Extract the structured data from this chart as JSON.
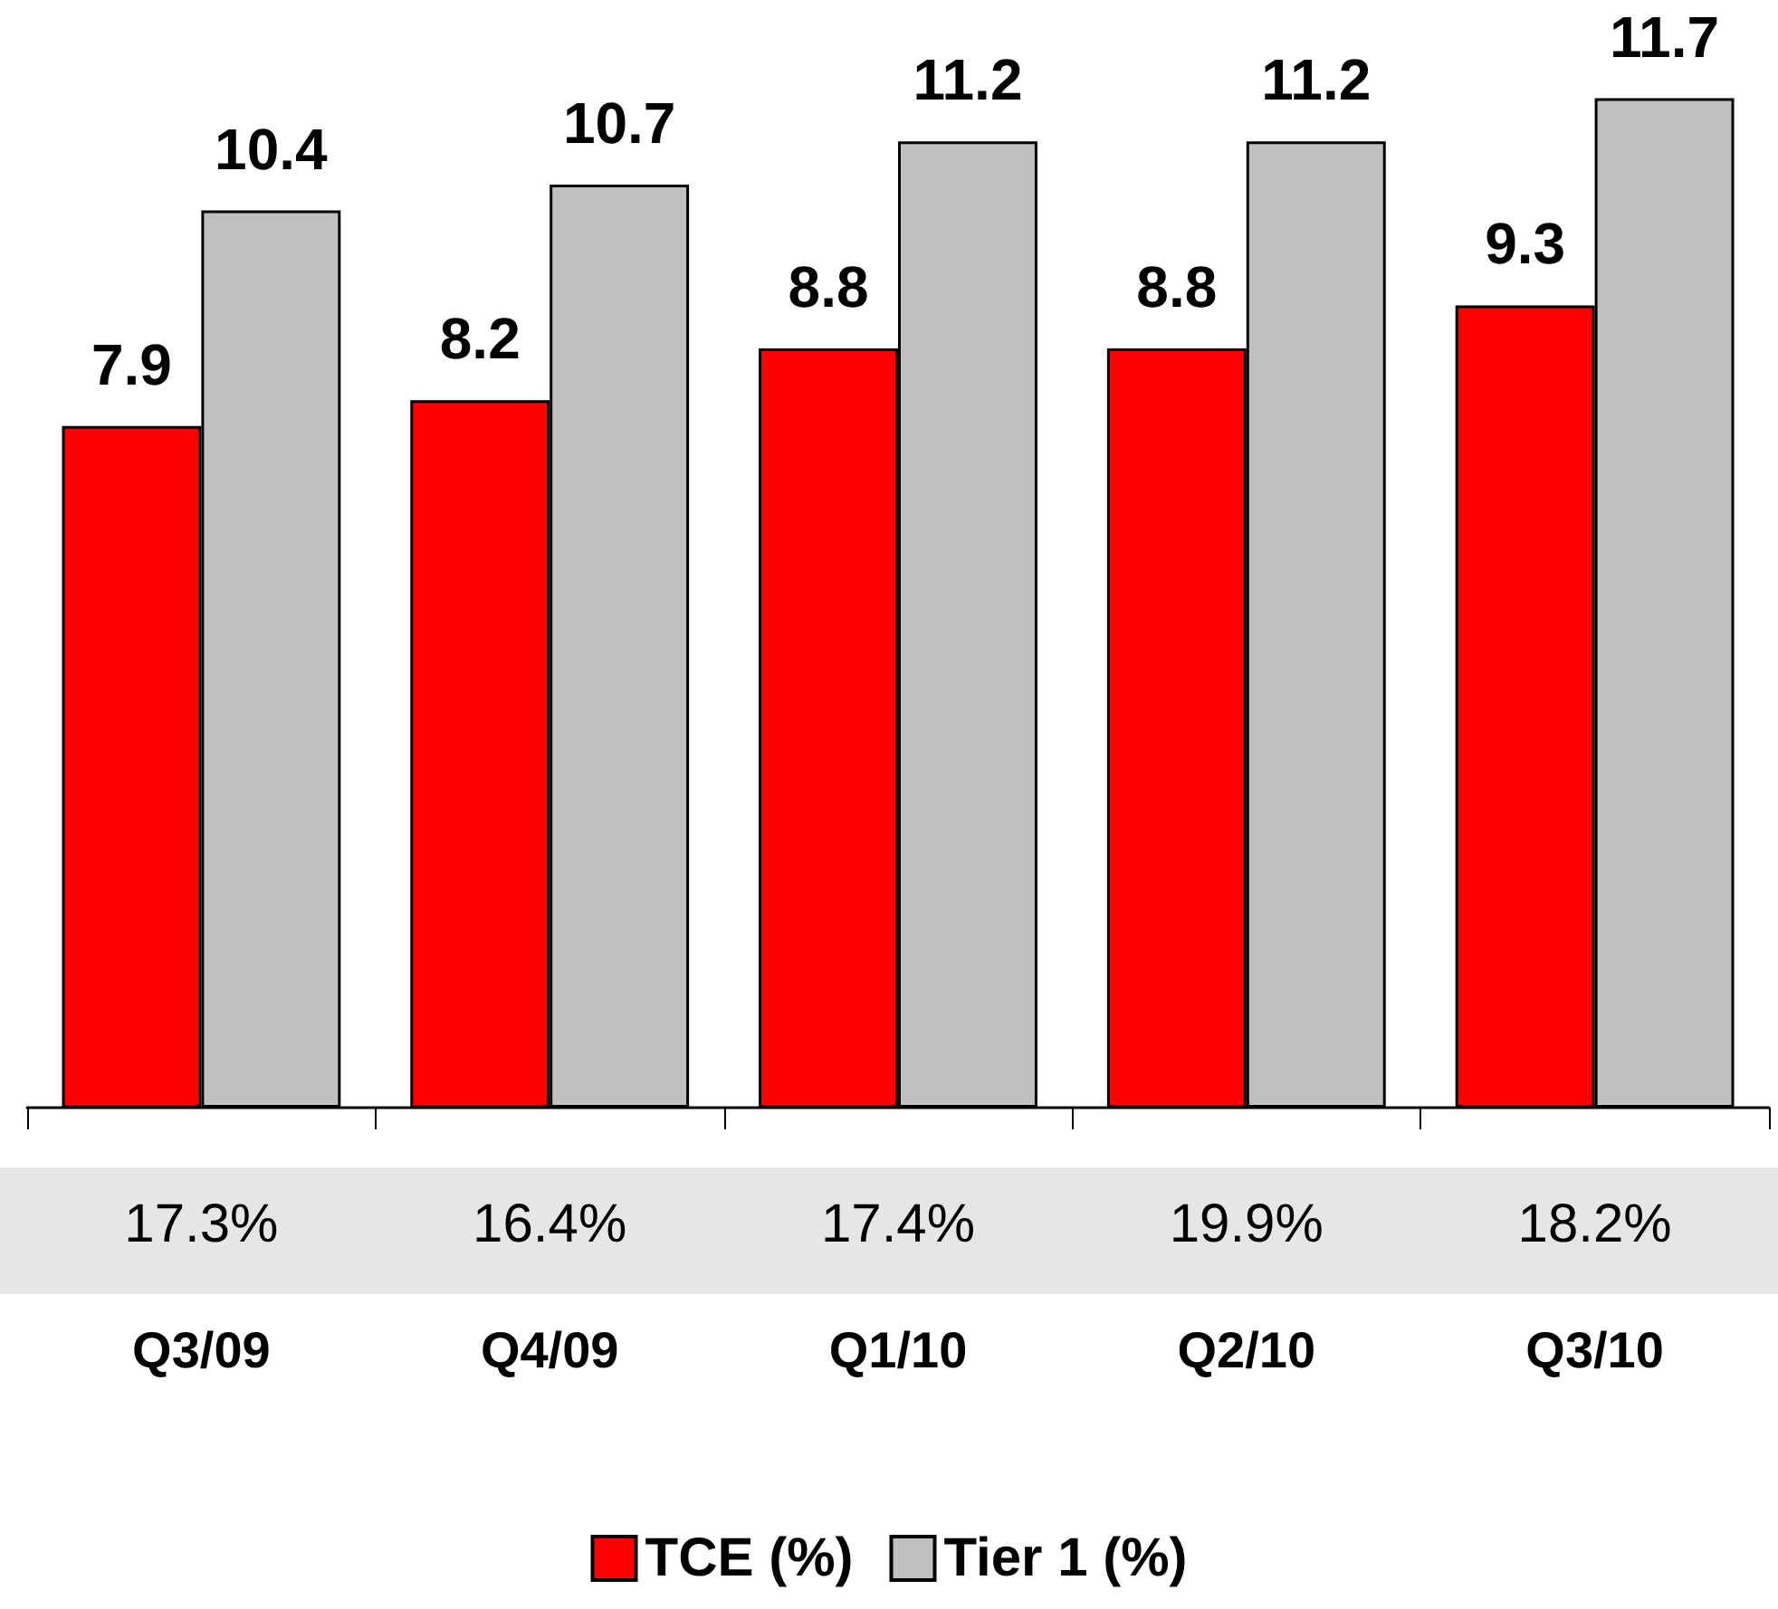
{
  "chart_data": {
    "type": "bar",
    "categories": [
      "Q3/09",
      "Q4/09",
      "Q1/10",
      "Q2/10",
      "Q3/10"
    ],
    "series": [
      {
        "name": "TCE (%)",
        "color": "#ff0000",
        "values": [
          7.9,
          8.2,
          8.8,
          8.8,
          9.3
        ]
      },
      {
        "name": "Tier 1 (%)",
        "color": "#c0c0c0",
        "values": [
          10.4,
          10.7,
          11.2,
          11.2,
          11.7
        ]
      }
    ],
    "data_labels": true,
    "legend": "bottom",
    "annotations": [
      "17.3%",
      "16.4%",
      "17.4%",
      "19.9%",
      "18.2%"
    ]
  }
}
